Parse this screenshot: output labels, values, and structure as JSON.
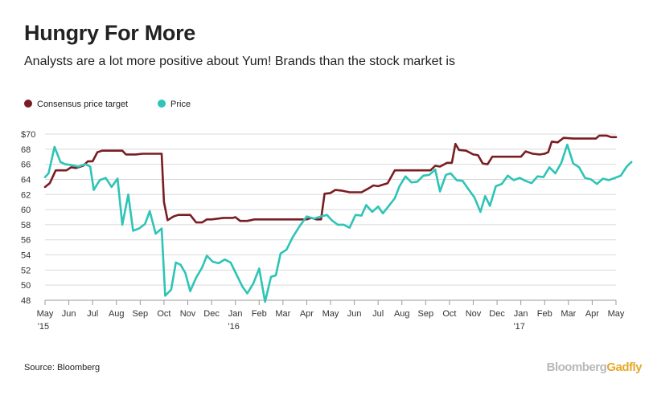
{
  "title": "Hungry For More",
  "subtitle": "Analysts are a lot more positive about Yum! Brands than the stock market is",
  "legend": [
    {
      "label": "Consensus price target",
      "color": "#7a1d22"
    },
    {
      "label": "Price",
      "color": "#2ec4b6"
    }
  ],
  "source": "Source: Bloomberg",
  "brand": {
    "part1": "Bloomberg",
    "part2": "Gadfly"
  },
  "chart_data": {
    "type": "line",
    "x_ticks": [
      {
        "label": "May",
        "sub": "'15",
        "x": 0
      },
      {
        "label": "Jun",
        "sub": "",
        "x": 1
      },
      {
        "label": "Jul",
        "sub": "",
        "x": 2
      },
      {
        "label": "Aug",
        "sub": "",
        "x": 3
      },
      {
        "label": "Sep",
        "sub": "",
        "x": 4
      },
      {
        "label": "Oct",
        "sub": "",
        "x": 5
      },
      {
        "label": "Nov",
        "sub": "",
        "x": 6
      },
      {
        "label": "Dec",
        "sub": "",
        "x": 7
      },
      {
        "label": "Jan",
        "sub": "'16",
        "x": 8
      },
      {
        "label": "Feb",
        "sub": "",
        "x": 9
      },
      {
        "label": "Mar",
        "sub": "",
        "x": 10
      },
      {
        "label": "Apr",
        "sub": "",
        "x": 11
      },
      {
        "label": "May",
        "sub": "",
        "x": 12
      },
      {
        "label": "Jun",
        "sub": "",
        "x": 13
      },
      {
        "label": "Jul",
        "sub": "",
        "x": 14
      },
      {
        "label": "Aug",
        "sub": "",
        "x": 15
      },
      {
        "label": "Sep",
        "sub": "",
        "x": 16
      },
      {
        "label": "Oct",
        "sub": "",
        "x": 17
      },
      {
        "label": "Nov",
        "sub": "",
        "x": 18
      },
      {
        "label": "Dec",
        "sub": "",
        "x": 19
      },
      {
        "label": "Jan",
        "sub": "'17",
        "x": 20
      },
      {
        "label": "Feb",
        "sub": "",
        "x": 21
      },
      {
        "label": "Mar",
        "sub": "",
        "x": 22
      },
      {
        "label": "Apr",
        "sub": "",
        "x": 23
      },
      {
        "label": "May",
        "sub": "",
        "x": 24
      }
    ],
    "y_ticks": [
      "$70",
      "68",
      "66",
      "64",
      "62",
      "60",
      "58",
      "56",
      "54",
      "52",
      "50",
      "48"
    ],
    "y_tick_values": [
      70,
      68,
      66,
      64,
      62,
      60,
      58,
      56,
      54,
      52,
      50,
      48
    ],
    "xlim": [
      0,
      24
    ],
    "ylim": [
      48,
      70
    ],
    "grid": "horizontal",
    "series": [
      {
        "name": "Consensus price target",
        "color": "#7a1d22",
        "points": [
          [
            0,
            63.0
          ],
          [
            0.2,
            63.5
          ],
          [
            0.45,
            65.2
          ],
          [
            0.7,
            65.2
          ],
          [
            0.9,
            65.2
          ],
          [
            1.1,
            65.6
          ],
          [
            1.3,
            65.5
          ],
          [
            1.6,
            65.8
          ],
          [
            1.8,
            66.4
          ],
          [
            2.0,
            66.4
          ],
          [
            2.2,
            67.6
          ],
          [
            2.4,
            67.8
          ],
          [
            3.0,
            67.8
          ],
          [
            3.25,
            67.8
          ],
          [
            3.4,
            67.3
          ],
          [
            3.8,
            67.3
          ],
          [
            4.1,
            67.4
          ],
          [
            4.5,
            67.4
          ],
          [
            4.9,
            67.4
          ],
          [
            5.0,
            61.0
          ],
          [
            5.15,
            58.6
          ],
          [
            5.4,
            59.1
          ],
          [
            5.6,
            59.3
          ],
          [
            6.1,
            59.3
          ],
          [
            6.35,
            58.3
          ],
          [
            6.6,
            58.3
          ],
          [
            6.8,
            58.7
          ],
          [
            7.0,
            58.7
          ],
          [
            7.5,
            58.9
          ],
          [
            7.9,
            58.9
          ],
          [
            8.0,
            59.0
          ],
          [
            8.2,
            58.5
          ],
          [
            8.5,
            58.5
          ],
          [
            8.8,
            58.7
          ],
          [
            9.5,
            58.7
          ],
          [
            10.0,
            58.7
          ],
          [
            10.5,
            58.7
          ],
          [
            11.0,
            58.7
          ],
          [
            11.2,
            58.9
          ],
          [
            11.4,
            58.7
          ],
          [
            11.6,
            58.7
          ],
          [
            11.75,
            62.1
          ],
          [
            12.0,
            62.2
          ],
          [
            12.2,
            62.6
          ],
          [
            12.5,
            62.5
          ],
          [
            12.8,
            62.3
          ],
          [
            13.3,
            62.3
          ],
          [
            13.6,
            62.8
          ],
          [
            13.8,
            63.2
          ],
          [
            14.0,
            63.1
          ],
          [
            14.4,
            63.5
          ],
          [
            14.7,
            65.2
          ],
          [
            15.0,
            65.2
          ],
          [
            15.5,
            65.2
          ],
          [
            16.0,
            65.2
          ],
          [
            16.2,
            65.2
          ],
          [
            16.4,
            65.8
          ],
          [
            16.6,
            65.7
          ],
          [
            16.9,
            66.2
          ],
          [
            17.1,
            66.2
          ],
          [
            17.25,
            68.7
          ],
          [
            17.4,
            67.9
          ],
          [
            17.7,
            67.8
          ],
          [
            18.0,
            67.3
          ],
          [
            18.2,
            67.2
          ],
          [
            18.4,
            66.1
          ],
          [
            18.6,
            66.0
          ],
          [
            18.8,
            67.0
          ],
          [
            19.0,
            67.0
          ],
          [
            19.5,
            67.0
          ],
          [
            20.0,
            67.0
          ],
          [
            20.2,
            67.7
          ],
          [
            20.5,
            67.4
          ],
          [
            20.8,
            67.3
          ],
          [
            21.0,
            67.4
          ],
          [
            21.15,
            67.6
          ],
          [
            21.3,
            69.0
          ],
          [
            21.55,
            68.9
          ],
          [
            21.8,
            69.5
          ],
          [
            22.2,
            69.4
          ],
          [
            22.6,
            69.4
          ],
          [
            23.0,
            69.4
          ],
          [
            23.15,
            69.4
          ],
          [
            23.3,
            69.8
          ],
          [
            23.6,
            69.8
          ],
          [
            23.8,
            69.6
          ],
          [
            24.0,
            69.6
          ]
        ]
      },
      {
        "name": "Price",
        "color": "#2ec4b6",
        "points": [
          [
            0,
            64.3
          ],
          [
            0.15,
            64.8
          ],
          [
            0.4,
            68.3
          ],
          [
            0.65,
            66.3
          ],
          [
            0.85,
            66.0
          ],
          [
            1.1,
            65.9
          ],
          [
            1.4,
            65.7
          ],
          [
            1.7,
            66.0
          ],
          [
            1.9,
            65.7
          ],
          [
            2.05,
            62.6
          ],
          [
            2.3,
            63.9
          ],
          [
            2.55,
            64.2
          ],
          [
            2.8,
            63.0
          ],
          [
            3.05,
            64.1
          ],
          [
            3.25,
            58.0
          ],
          [
            3.5,
            62.0
          ],
          [
            3.7,
            57.2
          ],
          [
            3.95,
            57.5
          ],
          [
            4.2,
            58.1
          ],
          [
            4.4,
            59.8
          ],
          [
            4.65,
            56.8
          ],
          [
            4.9,
            57.5
          ],
          [
            5.05,
            48.6
          ],
          [
            5.3,
            49.4
          ],
          [
            5.5,
            53.0
          ],
          [
            5.7,
            52.7
          ],
          [
            5.9,
            51.6
          ],
          [
            6.1,
            49.2
          ],
          [
            6.35,
            51.0
          ],
          [
            6.6,
            52.3
          ],
          [
            6.8,
            53.9
          ],
          [
            7.05,
            53.1
          ],
          [
            7.3,
            52.9
          ],
          [
            7.55,
            53.4
          ],
          [
            7.8,
            53.0
          ],
          [
            8.05,
            51.4
          ],
          [
            8.3,
            49.8
          ],
          [
            8.5,
            48.9
          ],
          [
            8.75,
            50.2
          ],
          [
            9.0,
            52.2
          ],
          [
            9.25,
            47.8
          ],
          [
            9.5,
            51.1
          ],
          [
            9.7,
            51.3
          ],
          [
            9.9,
            54.2
          ],
          [
            10.15,
            54.7
          ],
          [
            10.4,
            56.3
          ],
          [
            10.7,
            57.8
          ],
          [
            11.0,
            59.1
          ],
          [
            11.3,
            58.8
          ],
          [
            11.6,
            59.1
          ],
          [
            11.85,
            59.3
          ],
          [
            12.05,
            58.6
          ],
          [
            12.3,
            58.0
          ],
          [
            12.55,
            58.0
          ],
          [
            12.8,
            57.6
          ],
          [
            13.05,
            59.3
          ],
          [
            13.3,
            59.2
          ],
          [
            13.5,
            60.6
          ],
          [
            13.75,
            59.7
          ],
          [
            14.0,
            60.4
          ],
          [
            14.2,
            59.5
          ],
          [
            14.45,
            60.5
          ],
          [
            14.7,
            61.5
          ],
          [
            14.9,
            63.1
          ],
          [
            15.15,
            64.4
          ],
          [
            15.4,
            63.6
          ],
          [
            15.65,
            63.7
          ],
          [
            15.9,
            64.5
          ],
          [
            16.15,
            64.6
          ],
          [
            16.4,
            65.3
          ],
          [
            16.6,
            62.4
          ],
          [
            16.85,
            64.6
          ],
          [
            17.05,
            64.8
          ],
          [
            17.3,
            63.9
          ],
          [
            17.55,
            63.8
          ],
          [
            17.8,
            62.7
          ],
          [
            18.05,
            61.6
          ],
          [
            18.3,
            59.7
          ],
          [
            18.5,
            61.8
          ],
          [
            18.7,
            60.5
          ],
          [
            18.95,
            63.1
          ],
          [
            19.2,
            63.4
          ],
          [
            19.45,
            64.5
          ],
          [
            19.7,
            63.9
          ],
          [
            19.95,
            64.2
          ],
          [
            20.2,
            63.8
          ],
          [
            20.45,
            63.5
          ],
          [
            20.7,
            64.4
          ],
          [
            20.95,
            64.3
          ],
          [
            21.2,
            65.6
          ],
          [
            21.45,
            64.8
          ],
          [
            21.7,
            66.2
          ],
          [
            21.95,
            68.6
          ],
          [
            22.2,
            66.1
          ],
          [
            22.45,
            65.6
          ],
          [
            22.7,
            64.2
          ],
          [
            22.95,
            64.0
          ],
          [
            23.2,
            63.4
          ],
          [
            23.45,
            64.1
          ],
          [
            23.7,
            63.9
          ],
          [
            23.95,
            64.2
          ],
          [
            24.2,
            64.5
          ],
          [
            24.45,
            65.7
          ],
          [
            24.65,
            66.3
          ]
        ]
      }
    ]
  }
}
